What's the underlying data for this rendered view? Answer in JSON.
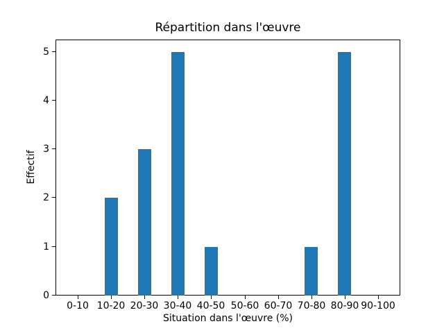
{
  "chart_data": {
    "type": "bar",
    "title": "Répartition dans l'œuvre",
    "xlabel": "Situation dans l'œuvre (%)",
    "ylabel": "Effectif",
    "categories": [
      "0-10",
      "10-20",
      "20-30",
      "30-40",
      "40-50",
      "50-60",
      "60-70",
      "70-80",
      "80-90",
      "90-100"
    ],
    "values": [
      0,
      2,
      3,
      5,
      1,
      0,
      0,
      1,
      5,
      0
    ],
    "yticks": [
      0,
      1,
      2,
      3,
      4,
      5
    ],
    "ylim": [
      0,
      5.25
    ],
    "bar_color": "#1f77b4",
    "bar_width_fraction": 0.4,
    "grid": false,
    "legend_position": "none",
    "text_color": "#000000"
  }
}
